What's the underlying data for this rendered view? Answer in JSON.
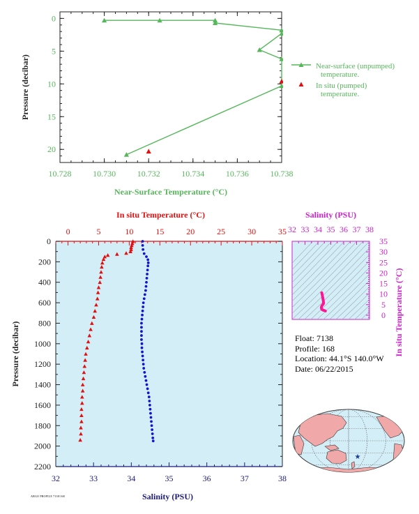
{
  "colors": {
    "green": "#55b75a",
    "red": "#e01010",
    "blue": "#1414d0",
    "magenta": "#cc22cc",
    "navy": "#1a1a7a",
    "panel_bg": "#d4eef8",
    "axis_text_dark": "#222222"
  },
  "float_info": {
    "float_line": "Float:  7138",
    "profile_line": "Profile:  168",
    "location_line": "Location:  44.1°S  140.0°W",
    "date_line": "Date:  06/22/2015"
  },
  "footer_stamp": "ARGO PROFILE 7138/168",
  "chart_data": [
    {
      "id": "near_surface_temperature",
      "type": "line",
      "xlabel": "Near-Surface Temperature (°C)",
      "ylabel": "Pressure (decibar)",
      "xlim": [
        10.728,
        10.738
      ],
      "ylim": [
        22,
        -1
      ],
      "xticks": [
        10.728,
        10.73,
        10.732,
        10.734,
        10.736,
        10.738
      ],
      "yticks": [
        0,
        5,
        10,
        15,
        20
      ],
      "series": [
        {
          "name": "Near-surface (unpumped) temperature.",
          "color": "#55b75a",
          "marker": "triangle",
          "line": true,
          "points": [
            [
              10.73,
              0.3
            ],
            [
              10.7325,
              0.3
            ],
            [
              10.735,
              0.3
            ],
            [
              10.735,
              0.7
            ],
            [
              10.738,
              1.8
            ],
            [
              10.738,
              2.3
            ],
            [
              10.737,
              4.8
            ],
            [
              10.738,
              6.2
            ],
            [
              10.738,
              10.3
            ],
            [
              10.731,
              20.8
            ]
          ]
        },
        {
          "name": "In situ (pumped) temperature.",
          "color": "#e01010",
          "marker": "triangle",
          "line": false,
          "points": [
            [
              10.738,
              9.6
            ],
            [
              10.732,
              20.3
            ]
          ]
        }
      ]
    },
    {
      "id": "profile",
      "type": "scatter",
      "ylabel": "Pressure (decibar)",
      "ylim": [
        2200,
        0
      ],
      "yticks": [
        0,
        200,
        400,
        600,
        800,
        1000,
        1200,
        1400,
        1600,
        1800,
        2000,
        2200
      ],
      "top_axis": {
        "label": "In situ Temperature (°C)",
        "range": [
          -2,
          35
        ],
        "ticks": [
          0,
          5,
          10,
          15,
          20,
          25,
          30,
          35
        ]
      },
      "bottom_axis": {
        "label": "Salinity (PSU)",
        "range": [
          32,
          38
        ],
        "ticks": [
          32,
          33,
          34,
          35,
          36,
          37,
          38
        ]
      },
      "series": [
        {
          "name": "Temperature",
          "color": "#e01010",
          "marker": "triangle",
          "axis": "top",
          "points": [
            [
              10.6,
              0
            ],
            [
              10.5,
              20
            ],
            [
              10.4,
              40
            ],
            [
              10.3,
              60
            ],
            [
              10.3,
              80
            ],
            [
              10.2,
              100
            ],
            [
              9.5,
              115
            ],
            [
              8.0,
              125
            ],
            [
              6.5,
              135
            ],
            [
              6.0,
              150
            ],
            [
              5.8,
              175
            ],
            [
              5.6,
              210
            ],
            [
              5.5,
              250
            ],
            [
              5.4,
              300
            ],
            [
              5.3,
              350
            ],
            [
              5.2,
              400
            ],
            [
              5.0,
              450
            ],
            [
              4.9,
              500
            ],
            [
              4.8,
              560
            ],
            [
              4.6,
              620
            ],
            [
              4.4,
              680
            ],
            [
              4.2,
              740
            ],
            [
              3.9,
              800
            ],
            [
              3.7,
              860
            ],
            [
              3.5,
              920
            ],
            [
              3.3,
              980
            ],
            [
              3.1,
              1040
            ],
            [
              2.9,
              1100
            ],
            [
              2.8,
              1160
            ],
            [
              2.7,
              1220
            ],
            [
              2.6,
              1280
            ],
            [
              2.5,
              1340
            ],
            [
              2.4,
              1400
            ],
            [
              2.4,
              1460
            ],
            [
              2.3,
              1520
            ],
            [
              2.3,
              1580
            ],
            [
              2.2,
              1640
            ],
            [
              2.2,
              1700
            ],
            [
              2.2,
              1760
            ],
            [
              2.1,
              1820
            ],
            [
              2.1,
              1880
            ],
            [
              2.0,
              1940
            ]
          ]
        },
        {
          "name": "Salinity",
          "color": "#1414d0",
          "marker": "dot",
          "axis": "bottom",
          "points": [
            [
              34.3,
              0
            ],
            [
              34.3,
              40
            ],
            [
              34.31,
              80
            ],
            [
              34.34,
              120
            ],
            [
              34.4,
              150
            ],
            [
              34.44,
              180
            ],
            [
              34.45,
              210
            ],
            [
              34.44,
              240
            ],
            [
              34.43,
              280
            ],
            [
              34.42,
              320
            ],
            [
              34.41,
              360
            ],
            [
              34.4,
              400
            ],
            [
              34.39,
              440
            ],
            [
              34.38,
              480
            ],
            [
              34.36,
              520
            ],
            [
              34.34,
              560
            ],
            [
              34.32,
              600
            ],
            [
              34.31,
              640
            ],
            [
              34.3,
              680
            ],
            [
              34.29,
              720
            ],
            [
              34.28,
              760
            ],
            [
              34.27,
              800
            ],
            [
              34.27,
              840
            ],
            [
              34.27,
              880
            ],
            [
              34.27,
              920
            ],
            [
              34.27,
              960
            ],
            [
              34.28,
              1000
            ],
            [
              34.28,
              1040
            ],
            [
              34.29,
              1080
            ],
            [
              34.3,
              1120
            ],
            [
              34.31,
              1160
            ],
            [
              34.32,
              1200
            ],
            [
              34.33,
              1240
            ],
            [
              34.35,
              1280
            ],
            [
              34.37,
              1320
            ],
            [
              34.39,
              1360
            ],
            [
              34.41,
              1400
            ],
            [
              34.43,
              1440
            ],
            [
              34.45,
              1480
            ],
            [
              34.47,
              1520
            ],
            [
              34.48,
              1560
            ],
            [
              34.49,
              1600
            ],
            [
              34.5,
              1640
            ],
            [
              34.51,
              1680
            ],
            [
              34.52,
              1720
            ],
            [
              34.53,
              1760
            ],
            [
              34.54,
              1800
            ],
            [
              34.55,
              1840
            ],
            [
              34.56,
              1880
            ],
            [
              34.57,
              1920
            ],
            [
              34.58,
              1950
            ]
          ]
        }
      ]
    },
    {
      "id": "ts_diagram",
      "type": "line",
      "top_axis": {
        "label": "Salinity (PSU)",
        "range": [
          32,
          38
        ],
        "ticks": [
          32,
          33,
          34,
          35,
          36,
          37,
          38
        ]
      },
      "right_axis": {
        "label": "In situ Temperature (°C)",
        "range": [
          -2,
          35
        ],
        "ticks": [
          0,
          5,
          10,
          15,
          20,
          25,
          30,
          35
        ]
      },
      "grid": "density contours",
      "series": [
        {
          "name": "T-S curve",
          "color": "#ff1493",
          "points": [
            [
              34.3,
              10.6
            ],
            [
              34.31,
              10.3
            ],
            [
              34.34,
              9.5
            ],
            [
              34.44,
              6.0
            ],
            [
              34.43,
              5.5
            ],
            [
              34.4,
              5.2
            ],
            [
              34.36,
              4.9
            ],
            [
              34.3,
              4.4
            ],
            [
              34.27,
              3.7
            ],
            [
              34.28,
              3.1
            ],
            [
              34.31,
              2.7
            ],
            [
              34.37,
              2.5
            ],
            [
              34.45,
              2.3
            ],
            [
              34.5,
              2.2
            ],
            [
              34.55,
              2.1
            ],
            [
              34.58,
              2.0
            ]
          ]
        }
      ]
    },
    {
      "id": "location_map",
      "type": "map",
      "marker": {
        "lat": -44.1,
        "lon": -140.0,
        "symbol": "★"
      }
    }
  ]
}
